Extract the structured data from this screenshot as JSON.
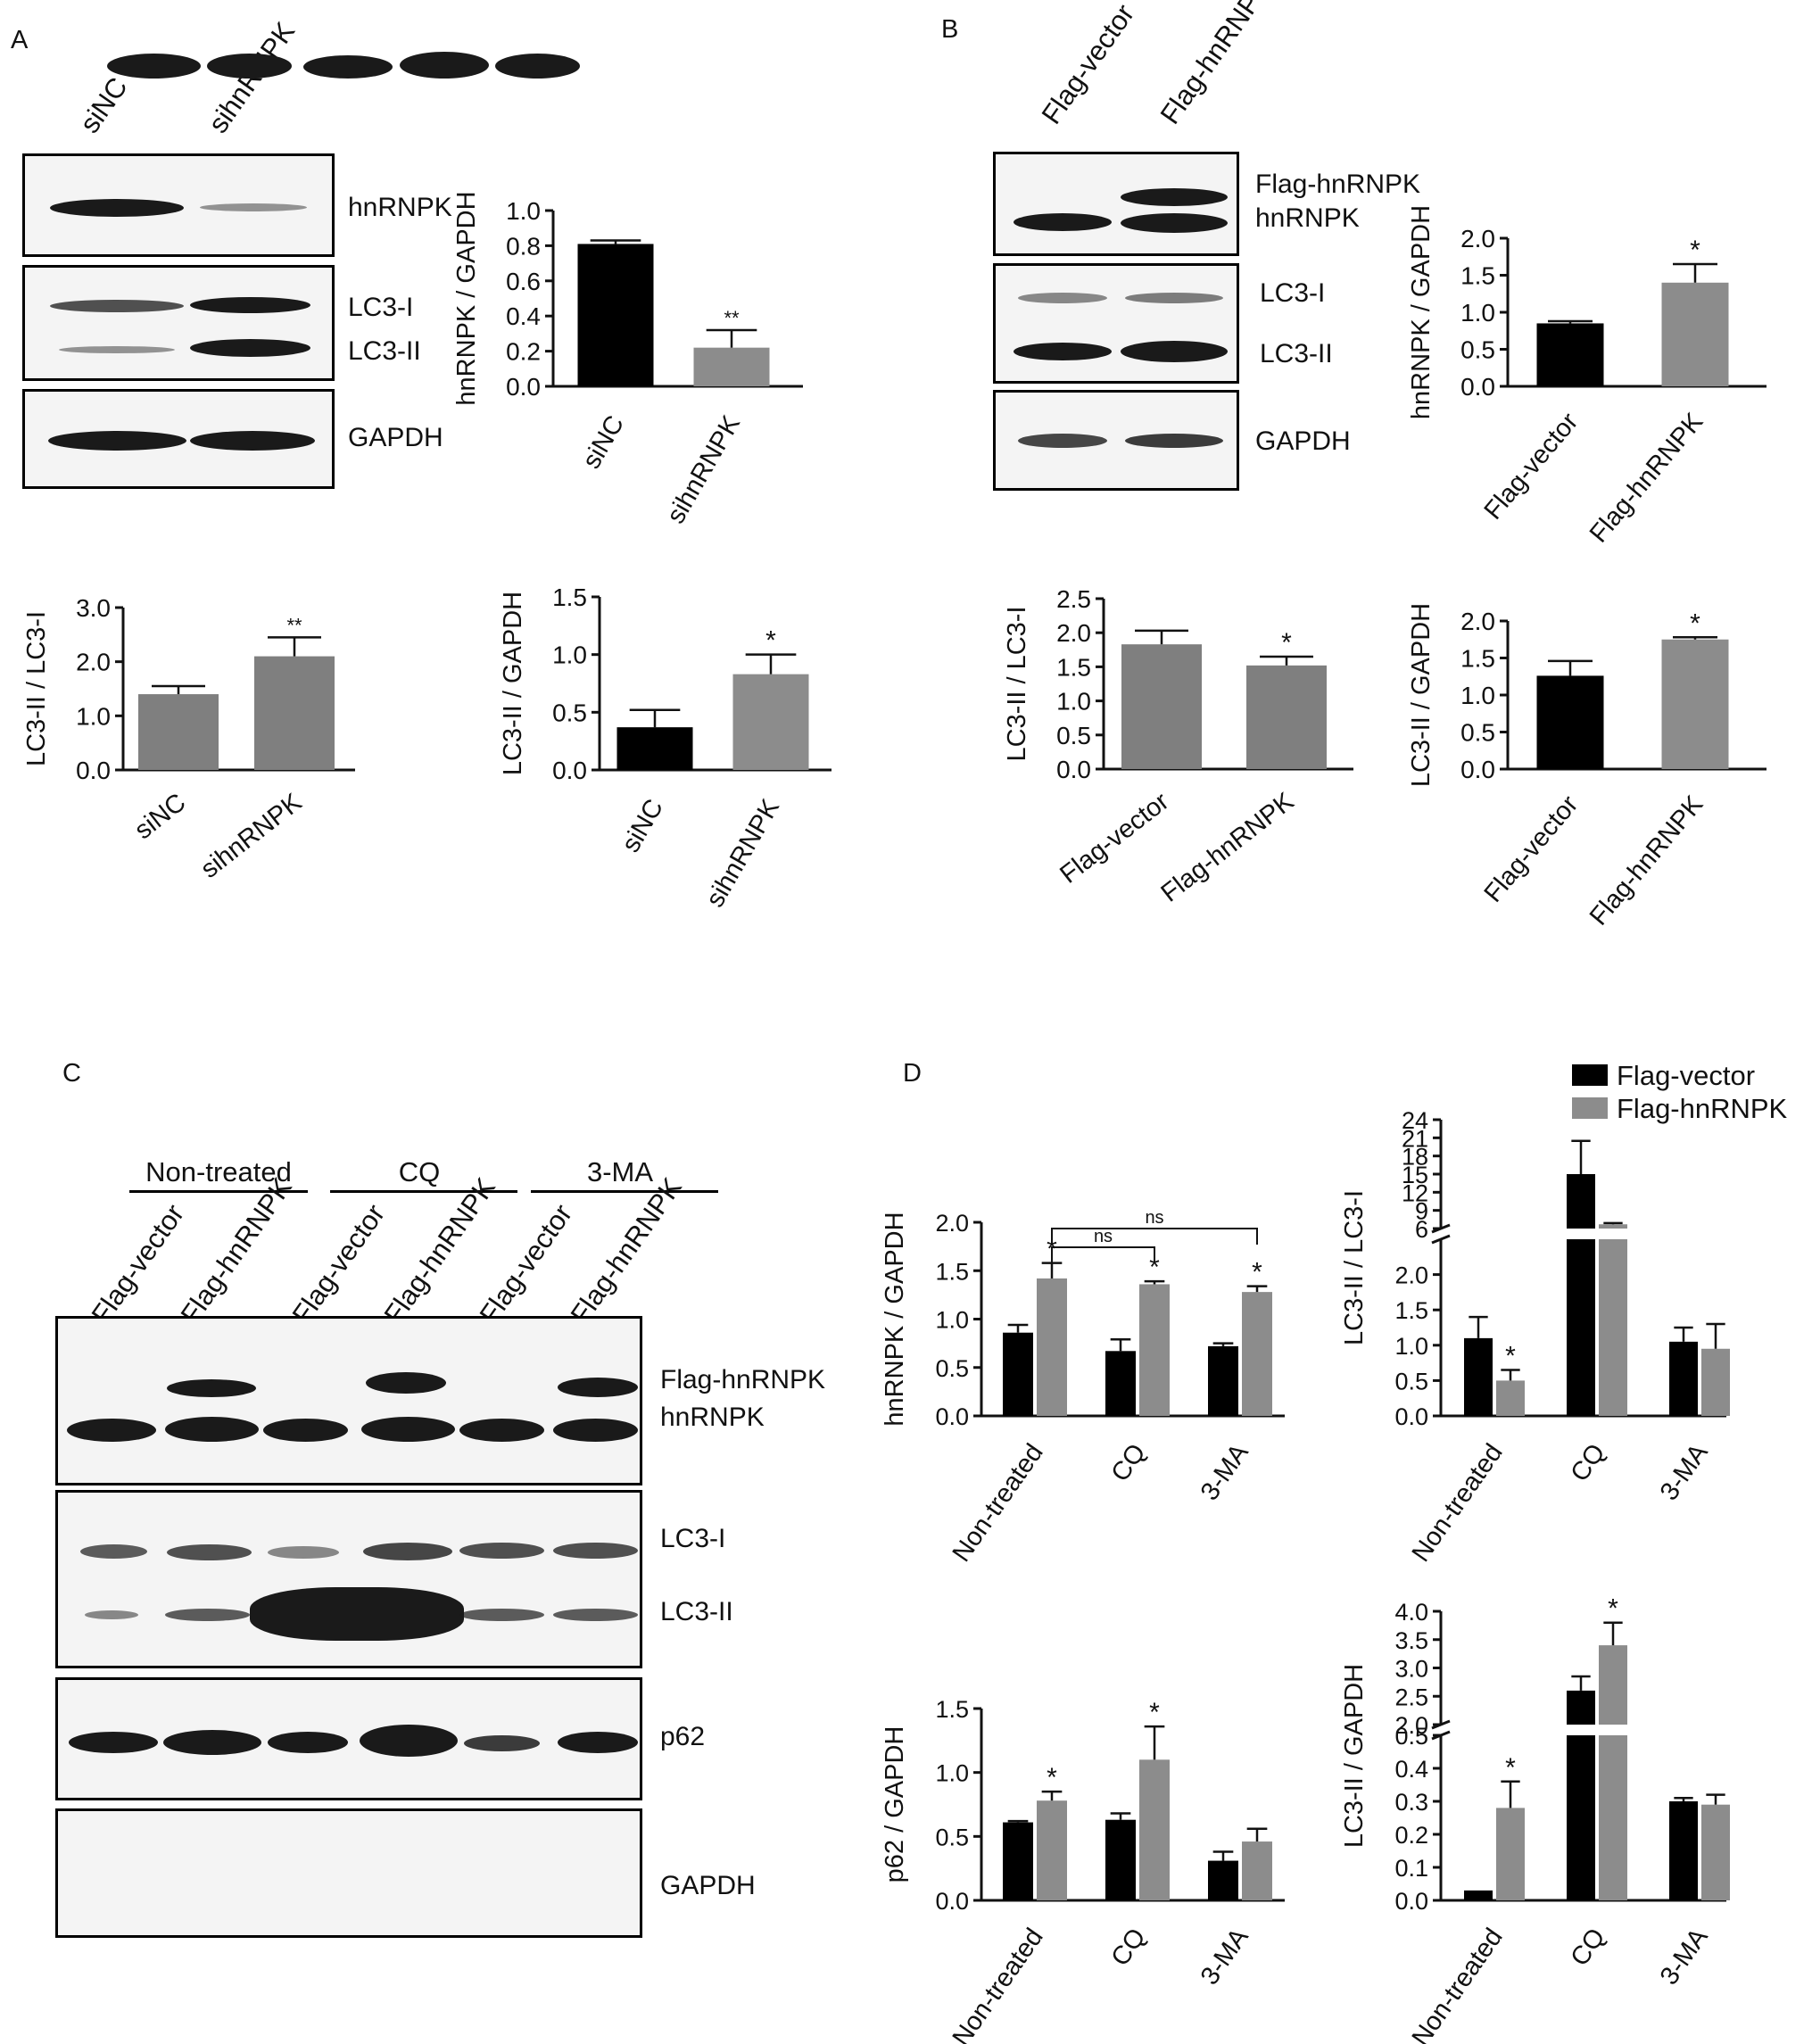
{
  "panels": {
    "a": "A",
    "b": "B",
    "c": "C",
    "d": "D"
  },
  "blots": {
    "a": {
      "lanes": [
        "siNC",
        "sihnRNPK"
      ],
      "labels": [
        "hnRNPK",
        "LC3-I",
        "LC3-II",
        "GAPDH"
      ]
    },
    "b": {
      "lanes": [
        "Flag-vector",
        "Flag-hnRNPK"
      ],
      "labels": [
        "Flag-hnRNPK",
        "hnRNPK",
        "LC3-I",
        "LC3-II",
        "GAPDH"
      ]
    },
    "c": {
      "treatments": [
        "Non-treated",
        "CQ",
        "3-MA"
      ],
      "lanes": [
        "Flag-vector",
        "Flag-hnRNPK",
        "Flag-vector",
        "Flag-hnRNPK",
        "Flag-vector",
        "Flag-hnRNPK"
      ],
      "labels": [
        "Flag-hnRNPK",
        "hnRNPK",
        "LC3-I",
        "LC3-II",
        "p62",
        "GAPDH"
      ]
    }
  },
  "legend": {
    "series": [
      "Flag-vector",
      "Flag-hnRNPK"
    ],
    "colors": [
      "#000000",
      "#8c8c8c"
    ]
  },
  "chart_data": [
    {
      "id": "a1",
      "type": "bar",
      "panel": "A",
      "categories": [
        "siNC",
        "sihnRNPK"
      ],
      "values": [
        0.81,
        0.22
      ],
      "errors": [
        0.02,
        0.1
      ],
      "significance": [
        "",
        "**"
      ],
      "ylabel": "hnRNPK / GAPDH",
      "ylim": [
        0,
        1.0
      ],
      "yticks": [
        "0.0",
        "0.2",
        "0.4",
        "0.6",
        "0.8",
        "1.0"
      ],
      "colors": [
        "#000000",
        "#8c8c8c"
      ]
    },
    {
      "id": "a2",
      "type": "bar",
      "panel": "A",
      "categories": [
        "siNC",
        "sihnRNPK"
      ],
      "values": [
        1.4,
        2.1
      ],
      "errors": [
        0.15,
        0.35
      ],
      "significance": [
        "",
        "**"
      ],
      "ylabel": "LC3-II / LC3-I",
      "ylim": [
        0,
        3.0
      ],
      "yticks": [
        "0.0",
        "1.0",
        "2.0",
        "3.0"
      ],
      "colors": [
        "#7f7f7f",
        "#7f7f7f"
      ]
    },
    {
      "id": "a3",
      "type": "bar",
      "panel": "A",
      "categories": [
        "siNC",
        "sihnRNPK"
      ],
      "values": [
        0.37,
        0.83
      ],
      "errors": [
        0.15,
        0.17
      ],
      "significance": [
        "",
        "*"
      ],
      "ylabel": "LC3-II / GAPDH",
      "ylim": [
        0,
        1.5
      ],
      "yticks": [
        "0.0",
        "0.5",
        "1.0",
        "1.5"
      ],
      "colors": [
        "#000000",
        "#8c8c8c"
      ]
    },
    {
      "id": "b1",
      "type": "bar",
      "panel": "B",
      "categories": [
        "Flag-vector",
        "Flag-hnRNPK"
      ],
      "values": [
        0.85,
        1.4
      ],
      "errors": [
        0.03,
        0.25
      ],
      "significance": [
        "",
        "*"
      ],
      "ylabel": "hnRNPK / GAPDH",
      "ylim": [
        0,
        2.0
      ],
      "yticks": [
        "0.0",
        "0.5",
        "1.0",
        "1.5",
        "2.0"
      ],
      "colors": [
        "#000000",
        "#8c8c8c"
      ]
    },
    {
      "id": "b2",
      "type": "bar",
      "panel": "B",
      "categories": [
        "Flag-vector",
        "Flag-hnRNPK"
      ],
      "values": [
        1.83,
        1.52
      ],
      "errors": [
        0.2,
        0.13
      ],
      "significance": [
        "",
        "*"
      ],
      "ylabel": "LC3-II / LC3-I",
      "ylim": [
        0,
        2.5
      ],
      "yticks": [
        "0.0",
        "0.5",
        "1.0",
        "1.5",
        "2.0",
        "2.5"
      ],
      "colors": [
        "#7f7f7f",
        "#7f7f7f"
      ]
    },
    {
      "id": "b3",
      "type": "bar",
      "panel": "B",
      "categories": [
        "Flag-vector",
        "Flag-hnRNPK"
      ],
      "values": [
        1.26,
        1.75
      ],
      "errors": [
        0.2,
        0.03
      ],
      "significance": [
        "",
        "*"
      ],
      "ylabel": "LC3-II / GAPDH",
      "ylim": [
        0,
        2.0
      ],
      "yticks": [
        "0.0",
        "0.5",
        "1.0",
        "1.5",
        "2.0"
      ],
      "colors": [
        "#000000",
        "#8c8c8c"
      ]
    },
    {
      "id": "d1",
      "type": "bar",
      "panel": "D",
      "categories": [
        "Non-treated",
        "CQ",
        "3-MA"
      ],
      "series": [
        {
          "name": "Flag-vector",
          "values": [
            0.86,
            0.67,
            0.72
          ],
          "errors": [
            0.08,
            0.12,
            0.03
          ]
        },
        {
          "name": "Flag-hnRNPK",
          "values": [
            1.42,
            1.36,
            1.28
          ],
          "errors": [
            0.16,
            0.03,
            0.06
          ]
        }
      ],
      "significance": [
        [
          "",
          "*"
        ],
        [
          "",
          "*"
        ],
        [
          "",
          "*"
        ]
      ],
      "brackets": [
        "ns",
        "ns"
      ],
      "ylabel": "hnRNPK / GAPDH",
      "ylim": [
        0,
        2.0
      ],
      "yticks": [
        "0.0",
        "0.5",
        "1.0",
        "1.5",
        "2.0"
      ],
      "colors": [
        "#000000",
        "#8c8c8c"
      ]
    },
    {
      "id": "d2",
      "type": "bar",
      "panel": "D",
      "categories": [
        "Non-treated",
        "CQ",
        "3-MA"
      ],
      "series": [
        {
          "name": "Flag-vector",
          "values": [
            1.1,
            15.0,
            1.05
          ],
          "errors": [
            0.3,
            5.5,
            0.2
          ]
        },
        {
          "name": "Flag-hnRNPK",
          "values": [
            0.5,
            6.7,
            0.95
          ],
          "errors": [
            0.15,
            0.2,
            0.35
          ]
        }
      ],
      "significance": [
        [
          "",
          "*"
        ],
        [
          "",
          ""
        ],
        [
          "",
          ""
        ]
      ],
      "ylabel": "LC3-II / LC3-I",
      "axis_break": [
        2.5,
        6
      ],
      "ylim": [
        0,
        24
      ],
      "yticks": [
        "0.0",
        "0.5",
        "1.0",
        "1.5",
        "2.0",
        "6",
        "9",
        "12",
        "15",
        "18",
        "21",
        "24"
      ],
      "colors": [
        "#000000",
        "#8c8c8c"
      ]
    },
    {
      "id": "d3",
      "type": "bar",
      "panel": "D",
      "categories": [
        "Non-treated",
        "CQ",
        "3-MA"
      ],
      "series": [
        {
          "name": "Flag-vector",
          "values": [
            0.61,
            0.63,
            0.31
          ],
          "errors": [
            0.01,
            0.05,
            0.07
          ]
        },
        {
          "name": "Flag-hnRNPK",
          "values": [
            0.78,
            1.1,
            0.46
          ],
          "errors": [
            0.07,
            0.26,
            0.1
          ]
        }
      ],
      "significance": [
        [
          "",
          "*"
        ],
        [
          "",
          "*"
        ],
        [
          "",
          ""
        ]
      ],
      "ylabel": "p62 / GAPDH",
      "ylim": [
        0,
        1.5
      ],
      "yticks": [
        "0.0",
        "0.5",
        "1.0",
        "1.5"
      ],
      "colors": [
        "#000000",
        "#8c8c8c"
      ]
    },
    {
      "id": "d4",
      "type": "bar",
      "panel": "D",
      "categories": [
        "Non-treated",
        "CQ",
        "3-MA"
      ],
      "series": [
        {
          "name": "Flag-vector",
          "values": [
            0.03,
            2.6,
            0.3
          ],
          "errors": [
            0.0,
            0.25,
            0.01
          ]
        },
        {
          "name": "Flag-hnRNPK",
          "values": [
            0.28,
            3.4,
            0.29
          ],
          "errors": [
            0.08,
            0.4,
            0.03
          ]
        }
      ],
      "significance": [
        [
          "",
          "*"
        ],
        [
          "",
          "*"
        ],
        [
          "",
          ""
        ]
      ],
      "ylabel": "LC3-II / GAPDH",
      "axis_break": [
        0.5,
        2.0
      ],
      "ylim": [
        0,
        4.0
      ],
      "yticks": [
        "0.0",
        "0.1",
        "0.2",
        "0.3",
        "0.4",
        "0.5",
        "2.0",
        "2.5",
        "3.0",
        "3.5",
        "4.0"
      ],
      "colors": [
        "#000000",
        "#8c8c8c"
      ]
    }
  ]
}
